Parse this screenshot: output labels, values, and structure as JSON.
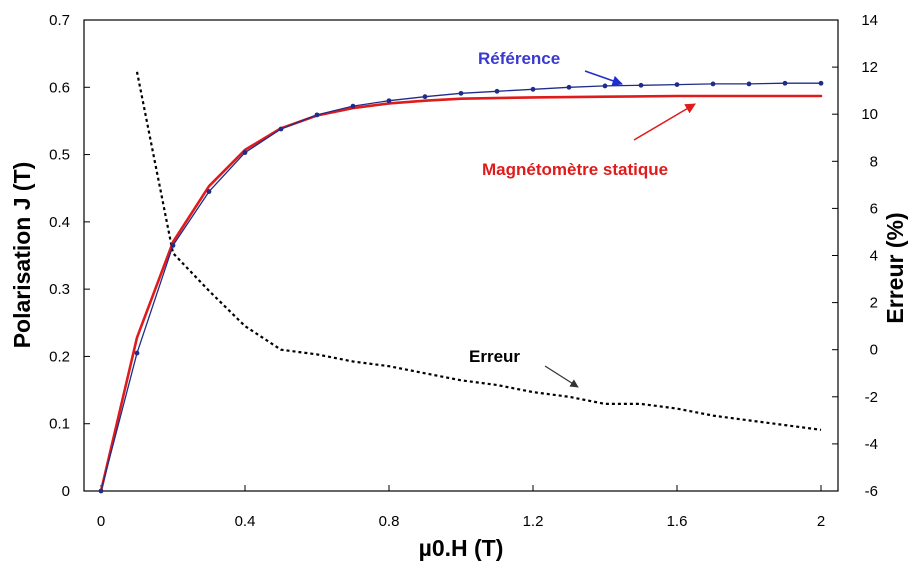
{
  "chart_data": {
    "type": "line",
    "xlabel": "µ0.H (T)",
    "ylabel_left": "Polarisation J (T)",
    "ylabel_right": "Erreur (%)",
    "xlim": [
      0,
      2
    ],
    "ylim_left": [
      0,
      0.7
    ],
    "ylim_right": [
      -6,
      14
    ],
    "x_ticks": [
      "0",
      "0.4",
      "0.8",
      "1.2",
      "1.6",
      "2"
    ],
    "x_tick_values": [
      0,
      0.4,
      0.8,
      1.2,
      1.6,
      2
    ],
    "y_left_ticks": [
      "0",
      "0.1",
      "0.2",
      "0.3",
      "0.4",
      "0.5",
      "0.6",
      "0.7"
    ],
    "y_left_tick_values": [
      0,
      0.1,
      0.2,
      0.3,
      0.4,
      0.5,
      0.6,
      0.7
    ],
    "y_right_ticks": [
      "-6",
      "-4",
      "-2",
      "0",
      "2",
      "4",
      "6",
      "8",
      "10",
      "12",
      "14"
    ],
    "y_right_tick_values": [
      -6,
      -4,
      -2,
      0,
      2,
      4,
      6,
      8,
      10,
      12,
      14
    ],
    "grid": false,
    "series": [
      {
        "name": "Référence",
        "axis": "left",
        "color": "#1f2d8a",
        "marker": "dot",
        "x": [
          0,
          0.1,
          0.2,
          0.3,
          0.4,
          0.5,
          0.6,
          0.7,
          0.8,
          0.9,
          1.0,
          1.1,
          1.2,
          1.3,
          1.4,
          1.5,
          1.6,
          1.7,
          1.8,
          1.9,
          2.0
        ],
        "y": [
          0.0,
          0.205,
          0.365,
          0.445,
          0.503,
          0.538,
          0.559,
          0.572,
          0.58,
          0.586,
          0.591,
          0.594,
          0.597,
          0.6,
          0.602,
          0.603,
          0.604,
          0.605,
          0.605,
          0.606,
          0.606
        ]
      },
      {
        "name": "Magnétomètre statique",
        "axis": "left",
        "color": "#e01b1b",
        "marker": "none",
        "x": [
          0,
          0.1,
          0.2,
          0.3,
          0.4,
          0.5,
          0.6,
          0.7,
          0.8,
          0.9,
          1.0,
          1.2,
          1.4,
          1.6,
          1.8,
          2.0
        ],
        "y": [
          0.0,
          0.228,
          0.37,
          0.453,
          0.507,
          0.539,
          0.558,
          0.569,
          0.576,
          0.58,
          0.583,
          0.585,
          0.586,
          0.587,
          0.587,
          0.587
        ]
      },
      {
        "name": "Erreur",
        "axis": "right",
        "color": "#000000",
        "style": "dotted",
        "x": [
          0.1,
          0.2,
          0.3,
          0.4,
          0.5,
          0.6,
          0.7,
          0.8,
          0.9,
          1.0,
          1.1,
          1.2,
          1.3,
          1.4,
          1.5,
          1.6,
          1.7,
          1.8,
          1.9,
          2.0
        ],
        "y": [
          11.8,
          4.1,
          2.5,
          1.0,
          0.0,
          -0.2,
          -0.5,
          -0.7,
          -1.0,
          -1.3,
          -1.5,
          -1.8,
          -2.0,
          -2.3,
          -2.3,
          -2.5,
          -2.8,
          -3.0,
          -3.2,
          -3.4
        ]
      }
    ],
    "annotations": [
      {
        "text": "Référence",
        "color": "#3a3ad0",
        "series": "Référence"
      },
      {
        "text": "Magnétomètre statique",
        "color": "#e01b1b",
        "series": "Magnétomètre statique"
      },
      {
        "text": "Erreur",
        "color": "#000000",
        "series": "Erreur"
      }
    ]
  }
}
